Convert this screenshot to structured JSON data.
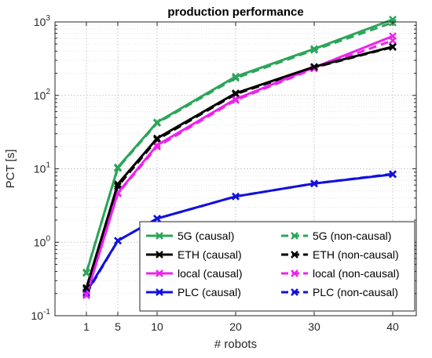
{
  "chart_data": {
    "type": "line",
    "title": "production performance",
    "xlabel": "# robots",
    "ylabel": "PCT [s]",
    "x": [
      1,
      5,
      10,
      20,
      30,
      40
    ],
    "xticks": [
      "1",
      "5",
      "10",
      "20",
      "30",
      "40"
    ],
    "xlim": [
      -3,
      43
    ],
    "yscale": "log",
    "ylim": [
      0.1,
      1000
    ],
    "yticks": [
      {
        "base": "10",
        "exp": "-1",
        "value": 0.1
      },
      {
        "base": "10",
        "exp": "0",
        "value": 1
      },
      {
        "base": "10",
        "exp": "1",
        "value": 10
      },
      {
        "base": "10",
        "exp": "2",
        "value": 100
      },
      {
        "base": "10",
        "exp": "3",
        "value": 1000
      }
    ],
    "grid": true,
    "minor_grid": true,
    "legend_position": "bottom-right",
    "legend_columns": 2,
    "marker": "x",
    "series": [
      {
        "name": "5G (causal)",
        "color": "#2ca55a",
        "dash": "solid",
        "values": [
          0.38,
          10.5,
          43,
          180,
          430,
          1080
        ]
      },
      {
        "name": "ETH (causal)",
        "color": "#000000",
        "dash": "solid",
        "values": [
          0.24,
          6.2,
          26,
          107,
          245,
          460
        ]
      },
      {
        "name": "local (causal)",
        "color": "#ee22ee",
        "dash": "solid",
        "values": [
          0.19,
          4.7,
          21,
          89,
          240,
          640
        ]
      },
      {
        "name": "PLC (causal)",
        "color": "#1111dd",
        "dash": "solid",
        "values": [
          0.21,
          1.05,
          2.1,
          4.2,
          6.3,
          8.4
        ]
      },
      {
        "name": "5G (non-causal)",
        "color": "#2ca55a",
        "dash": "dashed",
        "values": [
          0.39,
          10.2,
          42,
          172,
          415,
          980
        ]
      },
      {
        "name": "ETH (non-causal)",
        "color": "#000000",
        "dash": "dashed",
        "values": [
          0.23,
          5.8,
          25,
          104,
          240,
          455
        ]
      },
      {
        "name": "local (non-causal)",
        "color": "#ee22ee",
        "dash": "dashed",
        "values": [
          0.19,
          4.6,
          20,
          86,
          232,
          560
        ]
      },
      {
        "name": "PLC (non-causal)",
        "color": "#1111dd",
        "dash": "dashed",
        "values": [
          0.2,
          1.05,
          2.1,
          4.2,
          6.3,
          8.5
        ]
      }
    ]
  }
}
